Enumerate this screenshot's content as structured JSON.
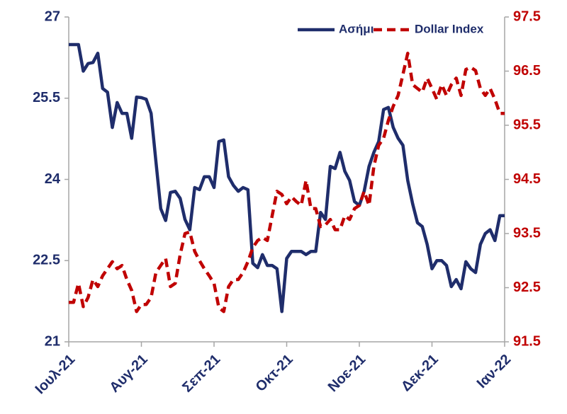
{
  "chart_data": {
    "type": "line",
    "categories": [
      "Ιουλ-21",
      null,
      null,
      null,
      null,
      null,
      null,
      null,
      null,
      null,
      null,
      null,
      null,
      null,
      null,
      "Αυγ-21",
      null,
      null,
      null,
      null,
      null,
      null,
      null,
      null,
      null,
      null,
      null,
      null,
      null,
      null,
      "Σεπ-21",
      null,
      null,
      null,
      null,
      null,
      null,
      null,
      null,
      null,
      null,
      null,
      null,
      null,
      null,
      "Οκτ-21",
      null,
      null,
      null,
      null,
      null,
      null,
      null,
      null,
      null,
      null,
      null,
      null,
      null,
      null,
      "Νοε-21",
      null,
      null,
      null,
      null,
      null,
      null,
      null,
      null,
      null,
      null,
      null,
      null,
      null,
      null,
      "Δεκ-21",
      null,
      null,
      null,
      null,
      null,
      null,
      null,
      null,
      null,
      null,
      null,
      null,
      null,
      null,
      "Ιαν-22"
    ],
    "series": [
      {
        "name": "Ασήμι",
        "color": "#1f2d6b",
        "dashed": false,
        "values": [
          26.49,
          26.49,
          26.49,
          26.0,
          26.14,
          26.16,
          26.33,
          25.68,
          25.61,
          24.96,
          25.42,
          25.22,
          25.22,
          24.76,
          25.52,
          25.51,
          25.48,
          25.22,
          24.33,
          23.46,
          23.24,
          23.76,
          23.78,
          23.65,
          23.26,
          23.07,
          23.85,
          23.81,
          24.05,
          24.05,
          23.85,
          24.7,
          24.73,
          24.05,
          23.89,
          23.78,
          23.85,
          23.81,
          22.45,
          22.37,
          22.61,
          22.41,
          22.41,
          22.35,
          21.56,
          22.54,
          22.67,
          22.67,
          22.67,
          22.61,
          22.67,
          22.67,
          23.39,
          23.26,
          24.24,
          24.2,
          24.5,
          24.15,
          23.98,
          23.59,
          23.52,
          23.78,
          24.24,
          24.5,
          24.7,
          25.29,
          25.33,
          24.96,
          24.76,
          24.63,
          23.98,
          23.55,
          23.2,
          23.13,
          22.8,
          22.35,
          22.5,
          22.5,
          22.41,
          22.02,
          22.15,
          21.98,
          22.48,
          22.35,
          22.28,
          22.8,
          23.0,
          23.07,
          22.87,
          23.33,
          23.33
        ]
      },
      {
        "name": "Dollar Index",
        "color": "#c00000",
        "dashed": true,
        "axis": "y2",
        "values": [
          92.23,
          92.23,
          92.58,
          92.15,
          92.32,
          92.65,
          92.52,
          92.72,
          92.85,
          92.98,
          92.85,
          92.91,
          92.65,
          92.45,
          92.06,
          92.19,
          92.19,
          92.32,
          92.78,
          92.91,
          93.04,
          92.52,
          92.58,
          93.11,
          93.5,
          93.53,
          93.17,
          93.0,
          92.85,
          92.72,
          92.58,
          92.13,
          92.06,
          92.52,
          92.65,
          92.65,
          92.78,
          92.98,
          93.24,
          93.37,
          93.43,
          93.37,
          93.83,
          94.28,
          94.22,
          94.05,
          94.18,
          94.09,
          94.02,
          94.48,
          93.96,
          93.96,
          93.63,
          93.66,
          93.76,
          93.57,
          93.57,
          93.83,
          93.76,
          93.96,
          94.02,
          94.28,
          94.02,
          94.74,
          95.13,
          95.26,
          95.59,
          95.85,
          96.05,
          96.44,
          96.83,
          96.25,
          96.18,
          96.11,
          96.37,
          96.18,
          95.98,
          96.25,
          96.05,
          96.25,
          96.37,
          96.05,
          96.53,
          96.57,
          96.51,
          96.18,
          96.05,
          96.18,
          95.98,
          95.72,
          95.72
        ]
      }
    ],
    "ylim": [
      21,
      27
    ],
    "yticks": [
      21,
      22.5,
      24,
      25.5,
      27
    ],
    "y2lim": [
      91.5,
      97.5
    ],
    "y2ticks": [
      91.5,
      92.5,
      93.5,
      94.5,
      95.5,
      96.5,
      97.5
    ],
    "legend": "upper right",
    "grid": false
  }
}
